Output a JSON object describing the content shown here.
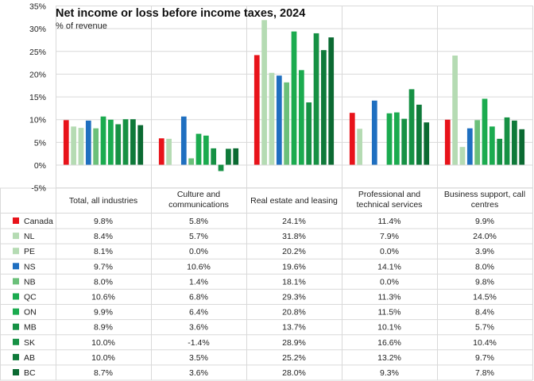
{
  "chart_data": {
    "type": "bar",
    "title": "Net income or loss before income taxes, 2024",
    "subtitle": "% of revenue",
    "ylabel": "% of revenue",
    "xlabel": "",
    "ylim": [
      -5,
      35
    ],
    "yticks": [
      -5,
      0,
      5,
      10,
      15,
      20,
      25,
      30,
      35
    ],
    "ytick_labels": [
      "-5%",
      "0%",
      "5%",
      "10%",
      "15%",
      "20%",
      "25%",
      "30%",
      "35%"
    ],
    "grid": true,
    "legend": "data-table-below",
    "categories": [
      "Total, all industries",
      "Culture and communications",
      "Real estate and leasing",
      "Professional and technical services",
      "Business support, call centres"
    ],
    "category_lines": [
      [
        "Total, all industries"
      ],
      [
        "Culture and",
        "communications"
      ],
      [
        "Real estate and leasing"
      ],
      [
        "Professional and",
        "technical services"
      ],
      [
        "Business support, call",
        "centres"
      ]
    ],
    "series": [
      {
        "name": "Canada",
        "color": "#e8131a",
        "values": [
          9.8,
          5.8,
          24.1,
          11.4,
          9.9
        ],
        "labels": [
          "9.8%",
          "5.8%",
          "24.1%",
          "11.4%",
          "9.9%"
        ]
      },
      {
        "name": "NL",
        "color": "#b5dbb3",
        "values": [
          8.4,
          5.7,
          31.8,
          7.9,
          24.0
        ],
        "labels": [
          "8.4%",
          "5.7%",
          "31.8%",
          "7.9%",
          "24.0%"
        ]
      },
      {
        "name": "PE",
        "color": "#b5dbb3",
        "values": [
          8.1,
          0.0,
          20.2,
          0.0,
          3.9
        ],
        "labels": [
          "8.1%",
          "0.0%",
          "20.2%",
          "0.0%",
          "3.9%"
        ]
      },
      {
        "name": "NS",
        "color": "#1f6fc0",
        "values": [
          9.7,
          10.6,
          19.6,
          14.1,
          8.0
        ],
        "labels": [
          "9.7%",
          "10.6%",
          "19.6%",
          "14.1%",
          "8.0%"
        ]
      },
      {
        "name": "NB",
        "color": "#6bc07a",
        "values": [
          8.0,
          1.4,
          18.1,
          0.0,
          9.8
        ],
        "labels": [
          "8.0%",
          "1.4%",
          "18.1%",
          "0.0%",
          "9.8%"
        ]
      },
      {
        "name": "QC",
        "color": "#1bab4f",
        "values": [
          10.6,
          6.8,
          29.3,
          11.3,
          14.5
        ],
        "labels": [
          "10.6%",
          "6.8%",
          "29.3%",
          "11.3%",
          "14.5%"
        ]
      },
      {
        "name": "ON",
        "color": "#1bab4f",
        "values": [
          9.9,
          6.4,
          20.8,
          11.5,
          8.4
        ],
        "labels": [
          "9.9%",
          "6.4%",
          "20.8%",
          "11.5%",
          "8.4%"
        ]
      },
      {
        "name": "MB",
        "color": "#169144",
        "values": [
          8.9,
          3.6,
          13.7,
          10.1,
          5.7
        ],
        "labels": [
          "8.9%",
          "3.6%",
          "13.7%",
          "10.1%",
          "5.7%"
        ]
      },
      {
        "name": "SK",
        "color": "#169144",
        "values": [
          10.0,
          -1.4,
          28.9,
          16.6,
          10.4
        ],
        "labels": [
          "10.0%",
          "-1.4%",
          "28.9%",
          "16.6%",
          "10.4%"
        ]
      },
      {
        "name": "AB",
        "color": "#0f7a3a",
        "values": [
          10.0,
          3.5,
          25.2,
          13.2,
          9.7
        ],
        "labels": [
          "10.0%",
          "3.5%",
          "25.2%",
          "13.2%",
          "9.7%"
        ]
      },
      {
        "name": "BC",
        "color": "#0b6a32",
        "values": [
          8.7,
          3.6,
          28.0,
          9.3,
          7.8
        ],
        "labels": [
          "8.7%",
          "3.6%",
          "28.0%",
          "9.3%",
          "7.8%"
        ]
      }
    ]
  }
}
